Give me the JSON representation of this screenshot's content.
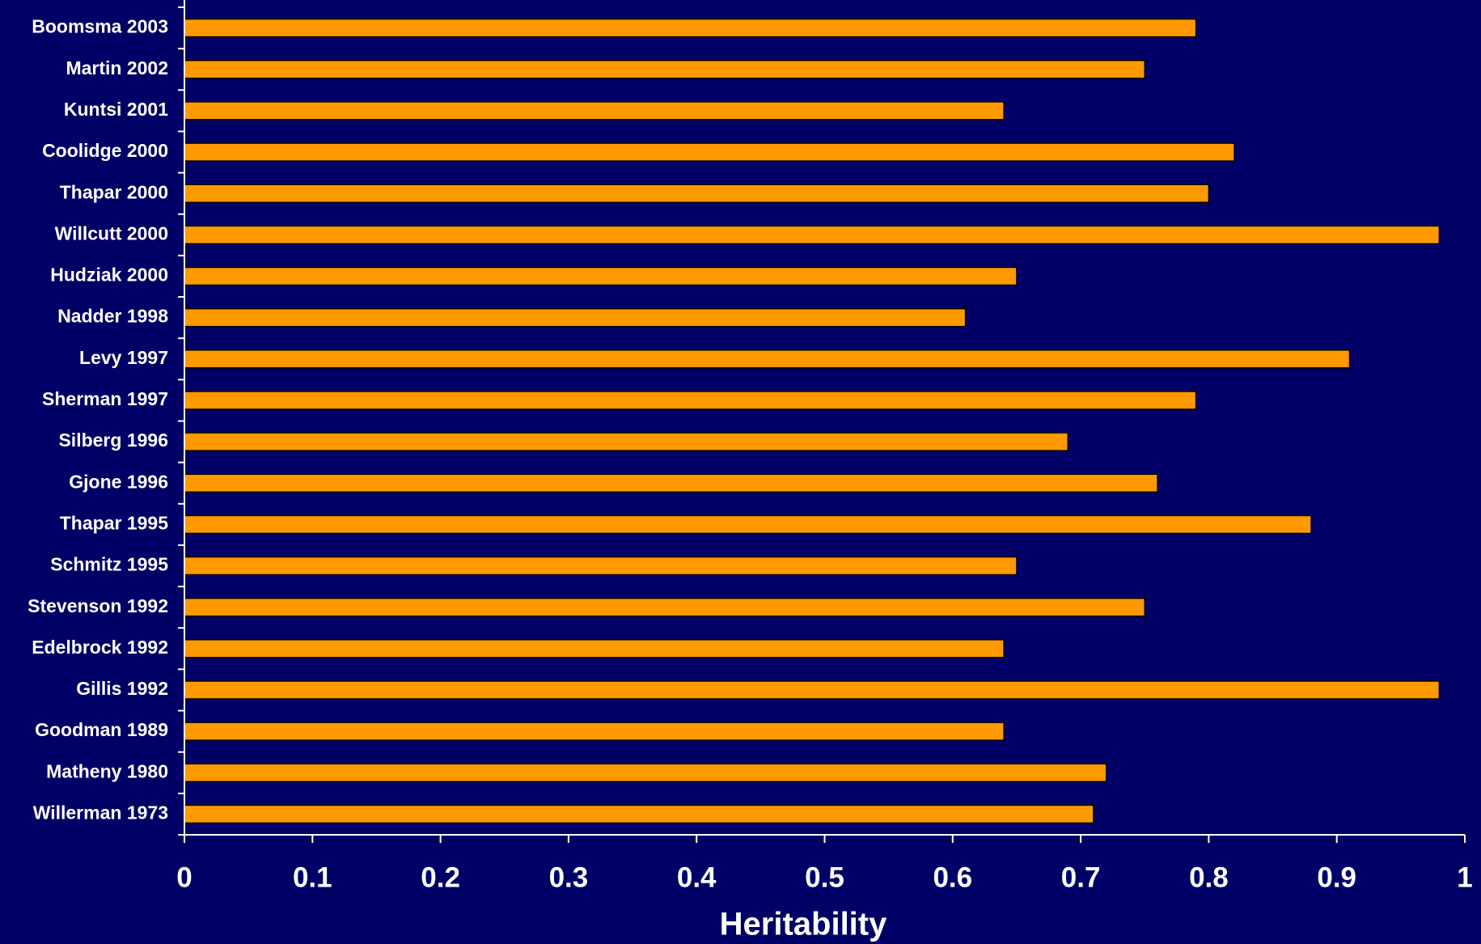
{
  "chart_data": {
    "type": "bar",
    "orientation": "horizontal",
    "x_label": "Heritability",
    "categories": [
      "Boomsma 2003",
      "Martin 2002",
      "Kuntsi 2001",
      "Coolidge 2000",
      "Thapar 2000",
      "Willcutt 2000",
      "Hudziak 2000",
      "Nadder 1998",
      "Levy 1997",
      "Sherman 1997",
      "Silberg 1996",
      "Gjone 1996",
      "Thapar 1995",
      "Schmitz 1995",
      "Stevenson 1992",
      "Edelbrock 1992",
      "Gillis 1992",
      "Goodman 1989",
      "Matheny 1980",
      "Willerman 1973"
    ],
    "values": [
      0.79,
      0.75,
      0.64,
      0.82,
      0.8,
      0.98,
      0.65,
      0.61,
      0.91,
      0.79,
      0.69,
      0.76,
      0.88,
      0.65,
      0.75,
      0.64,
      0.98,
      0.64,
      0.72,
      0.71
    ],
    "color": "#ff9900",
    "xlim": [
      0,
      1
    ],
    "xticks": [
      0,
      0.1,
      0.2,
      0.3,
      0.4,
      0.5,
      0.6,
      0.7,
      0.8,
      0.9,
      1
    ]
  }
}
